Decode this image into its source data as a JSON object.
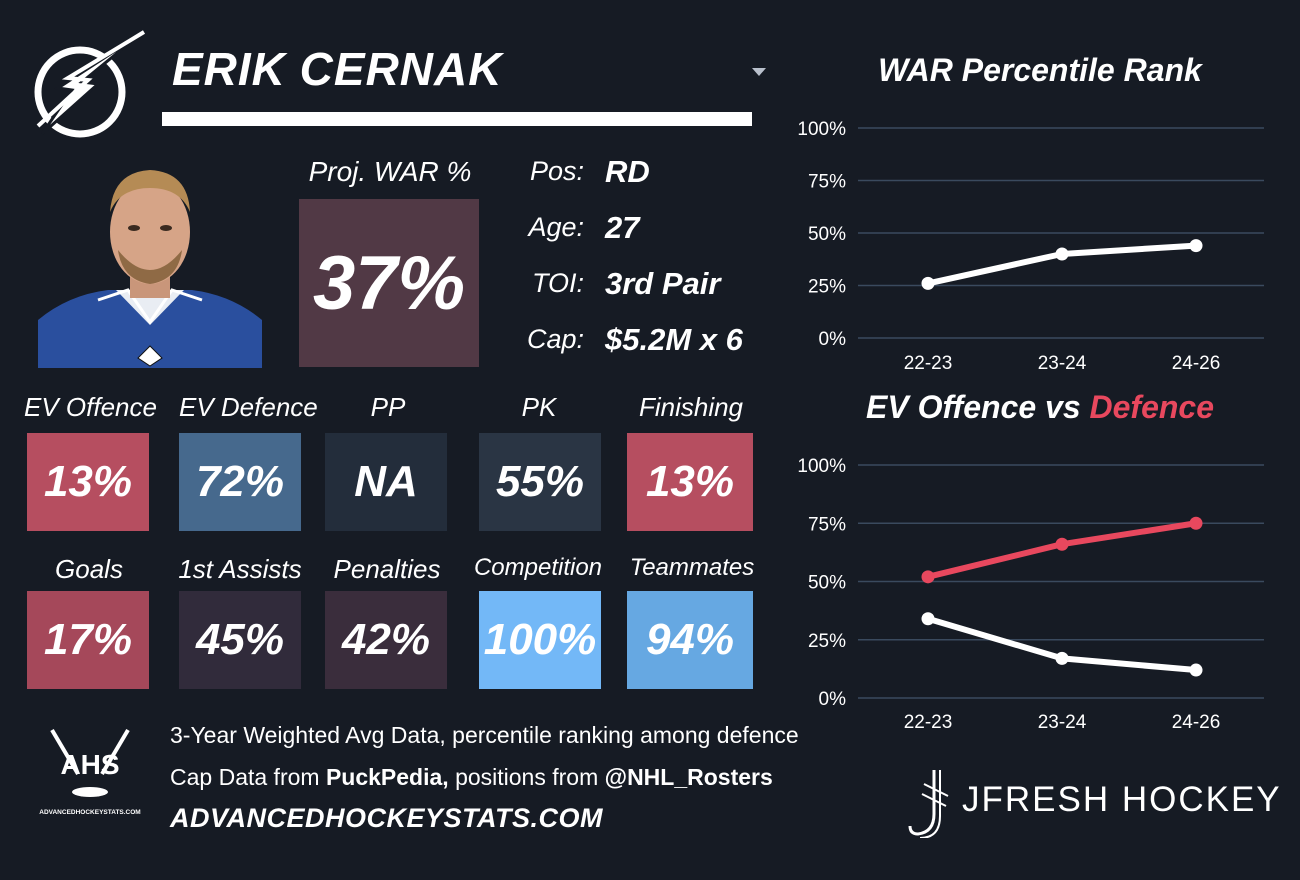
{
  "header": {
    "player_name": "ERIK CERNAK"
  },
  "projection": {
    "label": "Proj. WAR %",
    "value": "37%"
  },
  "info": [
    {
      "label": "Pos:",
      "value": "RD"
    },
    {
      "label": "Age:",
      "value": "27"
    },
    {
      "label": "TOI:",
      "value": "3rd Pair"
    },
    {
      "label": "Cap:",
      "value": "$5.2M x 6"
    }
  ],
  "stats_row1": [
    {
      "label": "EV Offence",
      "value": "13%",
      "color": "#b64e60"
    },
    {
      "label": "EV Defence",
      "value": "72%",
      "color": "#46698d"
    },
    {
      "label": "PP",
      "value": "NA",
      "color": "#232d3b"
    },
    {
      "label": "PK",
      "value": "55%",
      "color": "#2a3544"
    },
    {
      "label": "Finishing",
      "value": "13%",
      "color": "#b64e60"
    }
  ],
  "stats_row2": [
    {
      "label": "Goals",
      "value": "17%",
      "color": "#a5485a"
    },
    {
      "label": "1st Assists",
      "value": "45%",
      "color": "#312b3b"
    },
    {
      "label": "Penalties",
      "value": "42%",
      "color": "#3a2d3c"
    },
    {
      "label": "Competition",
      "value": "100%",
      "color": "#73b8f7"
    },
    {
      "label": "Teammates",
      "value": "94%",
      "color": "#66a8e2"
    }
  ],
  "footer": {
    "line1": "3-Year Weighted Avg Data, percentile ranking among defence",
    "line2_pre": "Cap Data from ",
    "line2_source": "PuckPedia,",
    "line2_mid": " positions from ",
    "line2_handle": "@NHL_Rosters",
    "site": "ADVANCEDHOCKEYSTATS.COM",
    "ahs_logo_text": "AHS",
    "ahs_logo_subtext": "ADVANCEDHOCKEYSTATS.COM",
    "brand": "JFRESH HOCKEY"
  },
  "colors": {
    "background": "#161b24",
    "grid": "#3a4a5e",
    "offence_line": "#ffffff",
    "defence_line": "#e8485e",
    "proj_box": "#513945"
  },
  "icons": {
    "team_logo": "lightning-bolt-logo-icon",
    "dropdown": "caret-down-icon",
    "brand_logo": "hockey-stick-j-logo-icon"
  },
  "chart_data": [
    {
      "type": "line",
      "title": "WAR Percentile Rank",
      "categories": [
        "22-23",
        "23-24",
        "24-26"
      ],
      "series": [
        {
          "values": [
            0.26,
            0.4,
            0.44
          ],
          "color": "#ffffff"
        }
      ],
      "ylim": [
        0,
        1
      ],
      "yticks": [
        "0%",
        "25%",
        "50%",
        "75%",
        "100%"
      ],
      "grid": true
    },
    {
      "type": "line",
      "title_parts": [
        "EV Offence vs ",
        "Defence"
      ],
      "categories": [
        "22-23",
        "23-24",
        "24-26"
      ],
      "series": [
        {
          "values": [
            0.34,
            0.17,
            0.12
          ],
          "color": "#ffffff"
        },
        {
          "values": [
            0.52,
            0.66,
            0.75
          ],
          "color": "#e8485e"
        }
      ],
      "ylim": [
        0,
        1
      ],
      "yticks": [
        "0%",
        "25%",
        "50%",
        "75%",
        "100%"
      ],
      "grid": true
    }
  ]
}
